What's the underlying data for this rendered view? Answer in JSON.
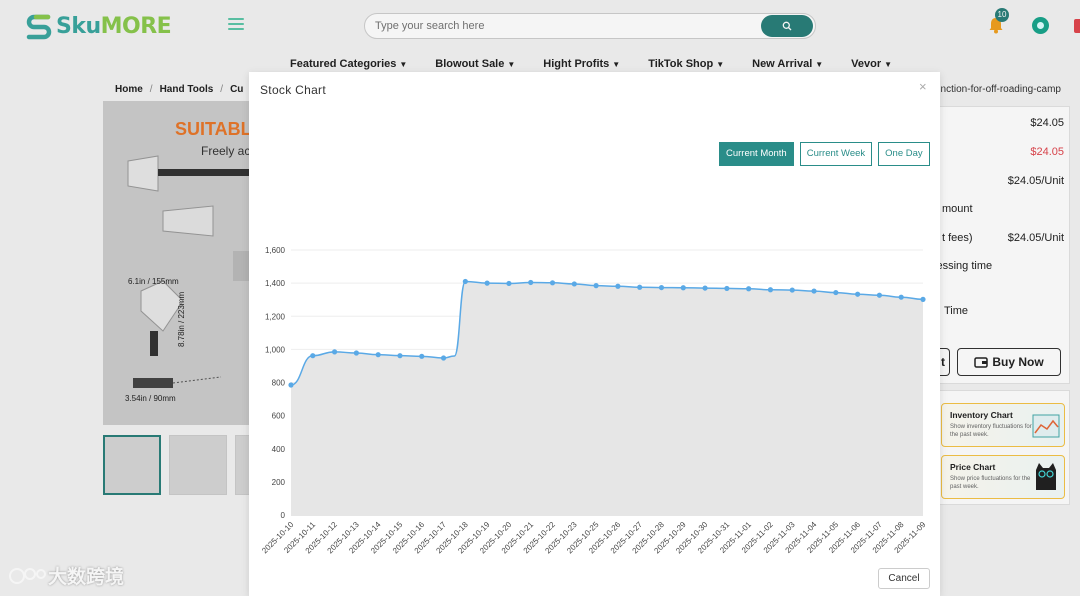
{
  "header": {
    "logo_a": "Sku",
    "logo_b": "MORE",
    "search_placeholder": "Type your search here",
    "notification_count": "10"
  },
  "nav": {
    "items": [
      {
        "label": "Featured Categories"
      },
      {
        "label": "Blowout Sale"
      },
      {
        "label": "Hight Profits"
      },
      {
        "label": "TikTok Shop"
      },
      {
        "label": "New Arrival"
      },
      {
        "label": "Vevor"
      }
    ]
  },
  "breadcrumb": {
    "home": "Home",
    "level1": "Hand Tools",
    "level2": "Cu",
    "tail": "ifunction-for-off-roading-camp"
  },
  "gallery": {
    "title": "SUITABLE",
    "subtitle": "Freely ac",
    "dim1": "6.1in / 155mm",
    "dim2": "8.78in / 223mm",
    "dim3": "3.54in / 90mm"
  },
  "right_panel": {
    "price1": "$24.05",
    "price2": "$24.05",
    "price3": "$24.05/Unit",
    "label_amount": "mount",
    "label_fees": "t fees)",
    "price4": "$24.05/Unit",
    "label_processing": "cessing time",
    "label_time": "Time",
    "buy_now": "Buy Now",
    "cart_stub": "t"
  },
  "cards": {
    "inventory_title": "Inventory Chart",
    "inventory_sub": "Show inventory fluctuations for the past week.",
    "price_title": "Price Chart",
    "price_sub": "Show price fluctuations for the past week."
  },
  "watermark": "大数跨境",
  "modal": {
    "title": "Stock Chart",
    "close": "×",
    "range_buttons": [
      "Current Month",
      "Current Week",
      "One Day"
    ],
    "active_range": "Current Month",
    "cancel": "Cancel"
  },
  "colors": {
    "accent": "#2a8d89",
    "line": "#5aa9e6",
    "area": "#e6e6e6"
  },
  "chart_data": {
    "type": "area",
    "title": "",
    "xlabel": "",
    "ylabel": "",
    "ylim": [
      0,
      1600
    ],
    "yticks": [
      0,
      200,
      400,
      600,
      800,
      1000,
      1200,
      1400,
      1600
    ],
    "grid": true,
    "x": [
      "2025-10-10",
      "2025-10-11",
      "2025-10-12",
      "2025-10-13",
      "2025-10-14",
      "2025-10-15",
      "2025-10-16",
      "2025-10-17",
      "2025-10-18",
      "2025-10-19",
      "2025-10-20",
      "2025-10-21",
      "2025-10-22",
      "2025-10-23",
      "2025-10-25",
      "2025-10-26",
      "2025-10-27",
      "2025-10-28",
      "2025-10-29",
      "2025-10-30",
      "2025-10-31",
      "2025-11-01",
      "2025-11-02",
      "2025-11-03",
      "2025-11-04",
      "2025-11-05",
      "2025-11-06",
      "2025-11-07",
      "2025-11-08",
      "2025-11-09"
    ],
    "series": [
      {
        "name": "",
        "values": [
          785,
          962,
          985,
          978,
          968,
          962,
          958,
          948,
          1410,
          1400,
          1398,
          1404,
          1402,
          1395,
          1385,
          1381,
          1375,
          1373,
          1372,
          1370,
          1368,
          1366,
          1360,
          1358,
          1352,
          1343,
          1333,
          1327,
          1315,
          1302
        ],
        "extra_points": [
          {
            "after_index": 7,
            "value": 960,
            "offset": 0.5
          }
        ]
      }
    ]
  }
}
